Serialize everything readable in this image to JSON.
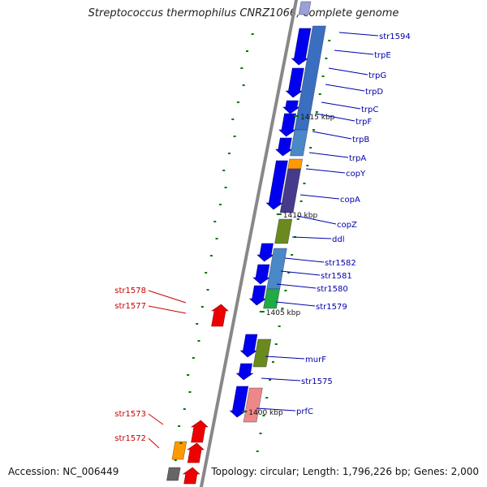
{
  "title": "Streptococcus thermophilus CNRZ1066, complete genome",
  "footer": {
    "accession": "Accession: NC_006449",
    "summary": "Topology: circular; Length: 1,796,226 bp; Genes: 2,000"
  },
  "colors": {
    "forward_label": "#0000aa",
    "reverse_label": "#cc0000",
    "forward_arrow": "#0000ee",
    "reverse_arrow": "#ee0000",
    "tick": "#007700",
    "backbone": "#888888"
  },
  "ticks": [
    {
      "label": "1415 kbp"
    },
    {
      "label": "1410 kbp"
    },
    {
      "label": "1405 kbp"
    },
    {
      "label": "1400 kbp"
    }
  ],
  "forward_genes": [
    {
      "label": "str1594"
    },
    {
      "label": "trpE"
    },
    {
      "label": "trpG"
    },
    {
      "label": "trpD"
    },
    {
      "label": "trpC"
    },
    {
      "label": "trpF"
    },
    {
      "label": "trpB"
    },
    {
      "label": "trpA"
    },
    {
      "label": "copY"
    },
    {
      "label": "copA"
    },
    {
      "label": "copZ"
    },
    {
      "label": "ddl"
    },
    {
      "label": "str1582"
    },
    {
      "label": "str1581"
    },
    {
      "label": "str1580"
    },
    {
      "label": "str1579"
    },
    {
      "label": "murF"
    },
    {
      "label": "str1575"
    },
    {
      "label": "prfC"
    }
  ],
  "reverse_genes": [
    {
      "label": "str1578"
    },
    {
      "label": "str1577"
    },
    {
      "label": "str1573"
    },
    {
      "label": "str1572"
    }
  ]
}
